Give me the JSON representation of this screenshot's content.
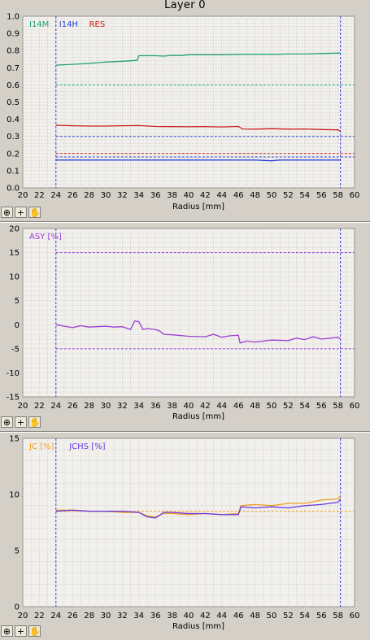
{
  "page": {
    "title": "Layer 0"
  },
  "toolbar": {
    "zoom_label": "+",
    "pan_label": "✋",
    "select_icon": "cursor-icon"
  },
  "colors": {
    "plot_bg": "#f1f0ec",
    "grid": "#c9c7c0",
    "axis": "#808080",
    "i14m": "#22a07a",
    "i14h": "#2a3fd0",
    "res": "#c8201e",
    "asy": "#9a3fd4",
    "jc": "#f0a020",
    "jchs": "#6a3ae0"
  },
  "chart_data": [
    {
      "type": "line",
      "xlabel": "Radius [mm]",
      "xlim": [
        20,
        60
      ],
      "ylim": [
        0,
        1.0
      ],
      "xticks": [
        "20",
        "22",
        "24",
        "26",
        "28",
        "30",
        "32",
        "34",
        "36",
        "38",
        "40",
        "42",
        "44",
        "46",
        "48",
        "50",
        "52",
        "54",
        "56",
        "58",
        "60"
      ],
      "yticks": [
        "0.0",
        "0.1",
        "0.2",
        "0.3",
        "0.4",
        "0.5",
        "0.6",
        "0.7",
        "0.8",
        "0.9",
        "1.0"
      ],
      "vlines": [
        24,
        58.3
      ],
      "series": [
        {
          "name": "I14M",
          "color_key": "i14m",
          "x": [
            24,
            26,
            28,
            30,
            32,
            33.8,
            34,
            36,
            37,
            38,
            39,
            40,
            42,
            44,
            46,
            48,
            50,
            52,
            54,
            56,
            58.3
          ],
          "y": [
            0.715,
            0.72,
            0.725,
            0.733,
            0.738,
            0.743,
            0.77,
            0.77,
            0.768,
            0.772,
            0.771,
            0.776,
            0.776,
            0.776,
            0.778,
            0.778,
            0.778,
            0.78,
            0.78,
            0.783,
            0.786
          ]
        },
        {
          "name": "I14H",
          "color_key": "i14h",
          "x": [
            24,
            30,
            36,
            42,
            48,
            50,
            51,
            52,
            56,
            58.3
          ],
          "y": [
            0.162,
            0.162,
            0.162,
            0.162,
            0.162,
            0.158,
            0.162,
            0.162,
            0.162,
            0.162
          ]
        },
        {
          "name": "RES",
          "color_key": "res",
          "x": [
            24,
            26,
            28,
            30,
            32,
            34,
            36,
            38,
            40,
            42,
            44,
            46,
            46.5,
            48,
            50,
            52,
            54,
            56,
            58,
            58.3
          ],
          "y": [
            0.365,
            0.362,
            0.36,
            0.36,
            0.362,
            0.363,
            0.358,
            0.357,
            0.356,
            0.357,
            0.355,
            0.358,
            0.343,
            0.342,
            0.345,
            0.342,
            0.343,
            0.34,
            0.338,
            0.33
          ]
        }
      ],
      "refs": [
        {
          "y": 0.6,
          "color_key": "i14m"
        },
        {
          "y": 0.3,
          "color_key": "i14h"
        },
        {
          "y": 0.2,
          "color_key": "res"
        },
        {
          "y": 0.18,
          "color_key": "i14h"
        }
      ],
      "legend": [
        {
          "label": "I14M",
          "color_key": "i14m"
        },
        {
          "label": "I14H",
          "color_key": "i14h"
        },
        {
          "label": "RES",
          "color_key": "res"
        }
      ]
    },
    {
      "type": "line",
      "xlabel": "Radius [mm]",
      "xlim": [
        20,
        60
      ],
      "ylim": [
        -15,
        20
      ],
      "xticks": [
        "20",
        "22",
        "24",
        "26",
        "28",
        "30",
        "32",
        "34",
        "36",
        "38",
        "40",
        "42",
        "44",
        "46",
        "48",
        "50",
        "52",
        "54",
        "56",
        "58",
        "60"
      ],
      "yticks": [
        "-15",
        "-10",
        "-5",
        "0",
        "5",
        "10",
        "15",
        "20"
      ],
      "ytick_values": [
        -15,
        -10,
        -5,
        0,
        5,
        10,
        15,
        20
      ],
      "vlines": [
        24,
        58.3
      ],
      "series": [
        {
          "name": "ASY [%]",
          "color_key": "asy",
          "x": [
            24,
            25,
            26,
            27,
            28,
            30,
            31,
            32,
            33,
            33.5,
            34,
            34.5,
            35,
            36,
            36.5,
            37,
            38,
            40,
            42,
            43,
            44,
            45,
            46,
            46.2,
            47,
            48,
            50,
            52,
            53,
            54,
            55,
            56,
            58,
            58.3
          ],
          "y": [
            0.0,
            -0.3,
            -0.6,
            -0.2,
            -0.5,
            -0.3,
            -0.5,
            -0.4,
            -1.0,
            0.8,
            0.6,
            -1.0,
            -0.8,
            -1.0,
            -1.3,
            -2.0,
            -2.1,
            -2.4,
            -2.5,
            -2.0,
            -2.6,
            -2.3,
            -2.2,
            -3.8,
            -3.4,
            -3.6,
            -3.2,
            -3.3,
            -2.8,
            -3.1,
            -2.5,
            -3.0,
            -2.6,
            -3.0
          ]
        }
      ],
      "refs": [
        {
          "y": 15,
          "color_key": "asy"
        },
        {
          "y": -5,
          "color_key": "asy"
        }
      ],
      "legend": [
        {
          "label": "ASY [%]",
          "color_key": "asy"
        }
      ]
    },
    {
      "type": "line",
      "xlabel": "Radius [mm]",
      "xlim": [
        20,
        60
      ],
      "ylim": [
        0,
        15
      ],
      "xticks": [
        "20",
        "22",
        "24",
        "26",
        "28",
        "30",
        "32",
        "34",
        "36",
        "38",
        "40",
        "42",
        "44",
        "46",
        "48",
        "50",
        "52",
        "54",
        "56",
        "58",
        "60"
      ],
      "yticks": [
        "0",
        "5",
        "10",
        "15"
      ],
      "ytick_values": [
        0,
        5,
        10,
        15
      ],
      "vlines": [
        24,
        58.3
      ],
      "series": [
        {
          "name": "JC [%]",
          "color_key": "jc",
          "x": [
            24,
            26,
            28,
            30,
            32,
            34,
            35,
            36,
            37,
            38,
            40,
            42,
            44,
            46,
            46.3,
            48,
            50,
            52,
            54,
            56,
            58,
            58.3
          ],
          "y": [
            8.6,
            8.6,
            8.5,
            8.5,
            8.4,
            8.4,
            8.1,
            8.0,
            8.3,
            8.3,
            8.2,
            8.3,
            8.2,
            8.3,
            9.0,
            9.1,
            9.0,
            9.2,
            9.2,
            9.5,
            9.6,
            9.9
          ]
        },
        {
          "name": "JCHS [%]",
          "color_key": "jchs",
          "x": [
            24,
            26,
            28,
            30,
            32,
            34,
            35,
            36,
            37,
            38,
            40,
            42,
            44,
            46,
            46.3,
            48,
            50,
            52,
            54,
            56,
            58,
            58.3
          ],
          "y": [
            8.5,
            8.6,
            8.5,
            8.5,
            8.5,
            8.4,
            8.0,
            7.9,
            8.4,
            8.4,
            8.3,
            8.3,
            8.2,
            8.2,
            8.9,
            8.8,
            8.9,
            8.8,
            9.0,
            9.1,
            9.3,
            9.6
          ]
        }
      ],
      "refs": [
        {
          "y": 8.5,
          "color_key": "jc"
        }
      ],
      "legend": [
        {
          "label": "JC [%]",
          "color_key": "jc"
        },
        {
          "label": "JCHS [%]",
          "color_key": "jchs"
        }
      ]
    }
  ]
}
